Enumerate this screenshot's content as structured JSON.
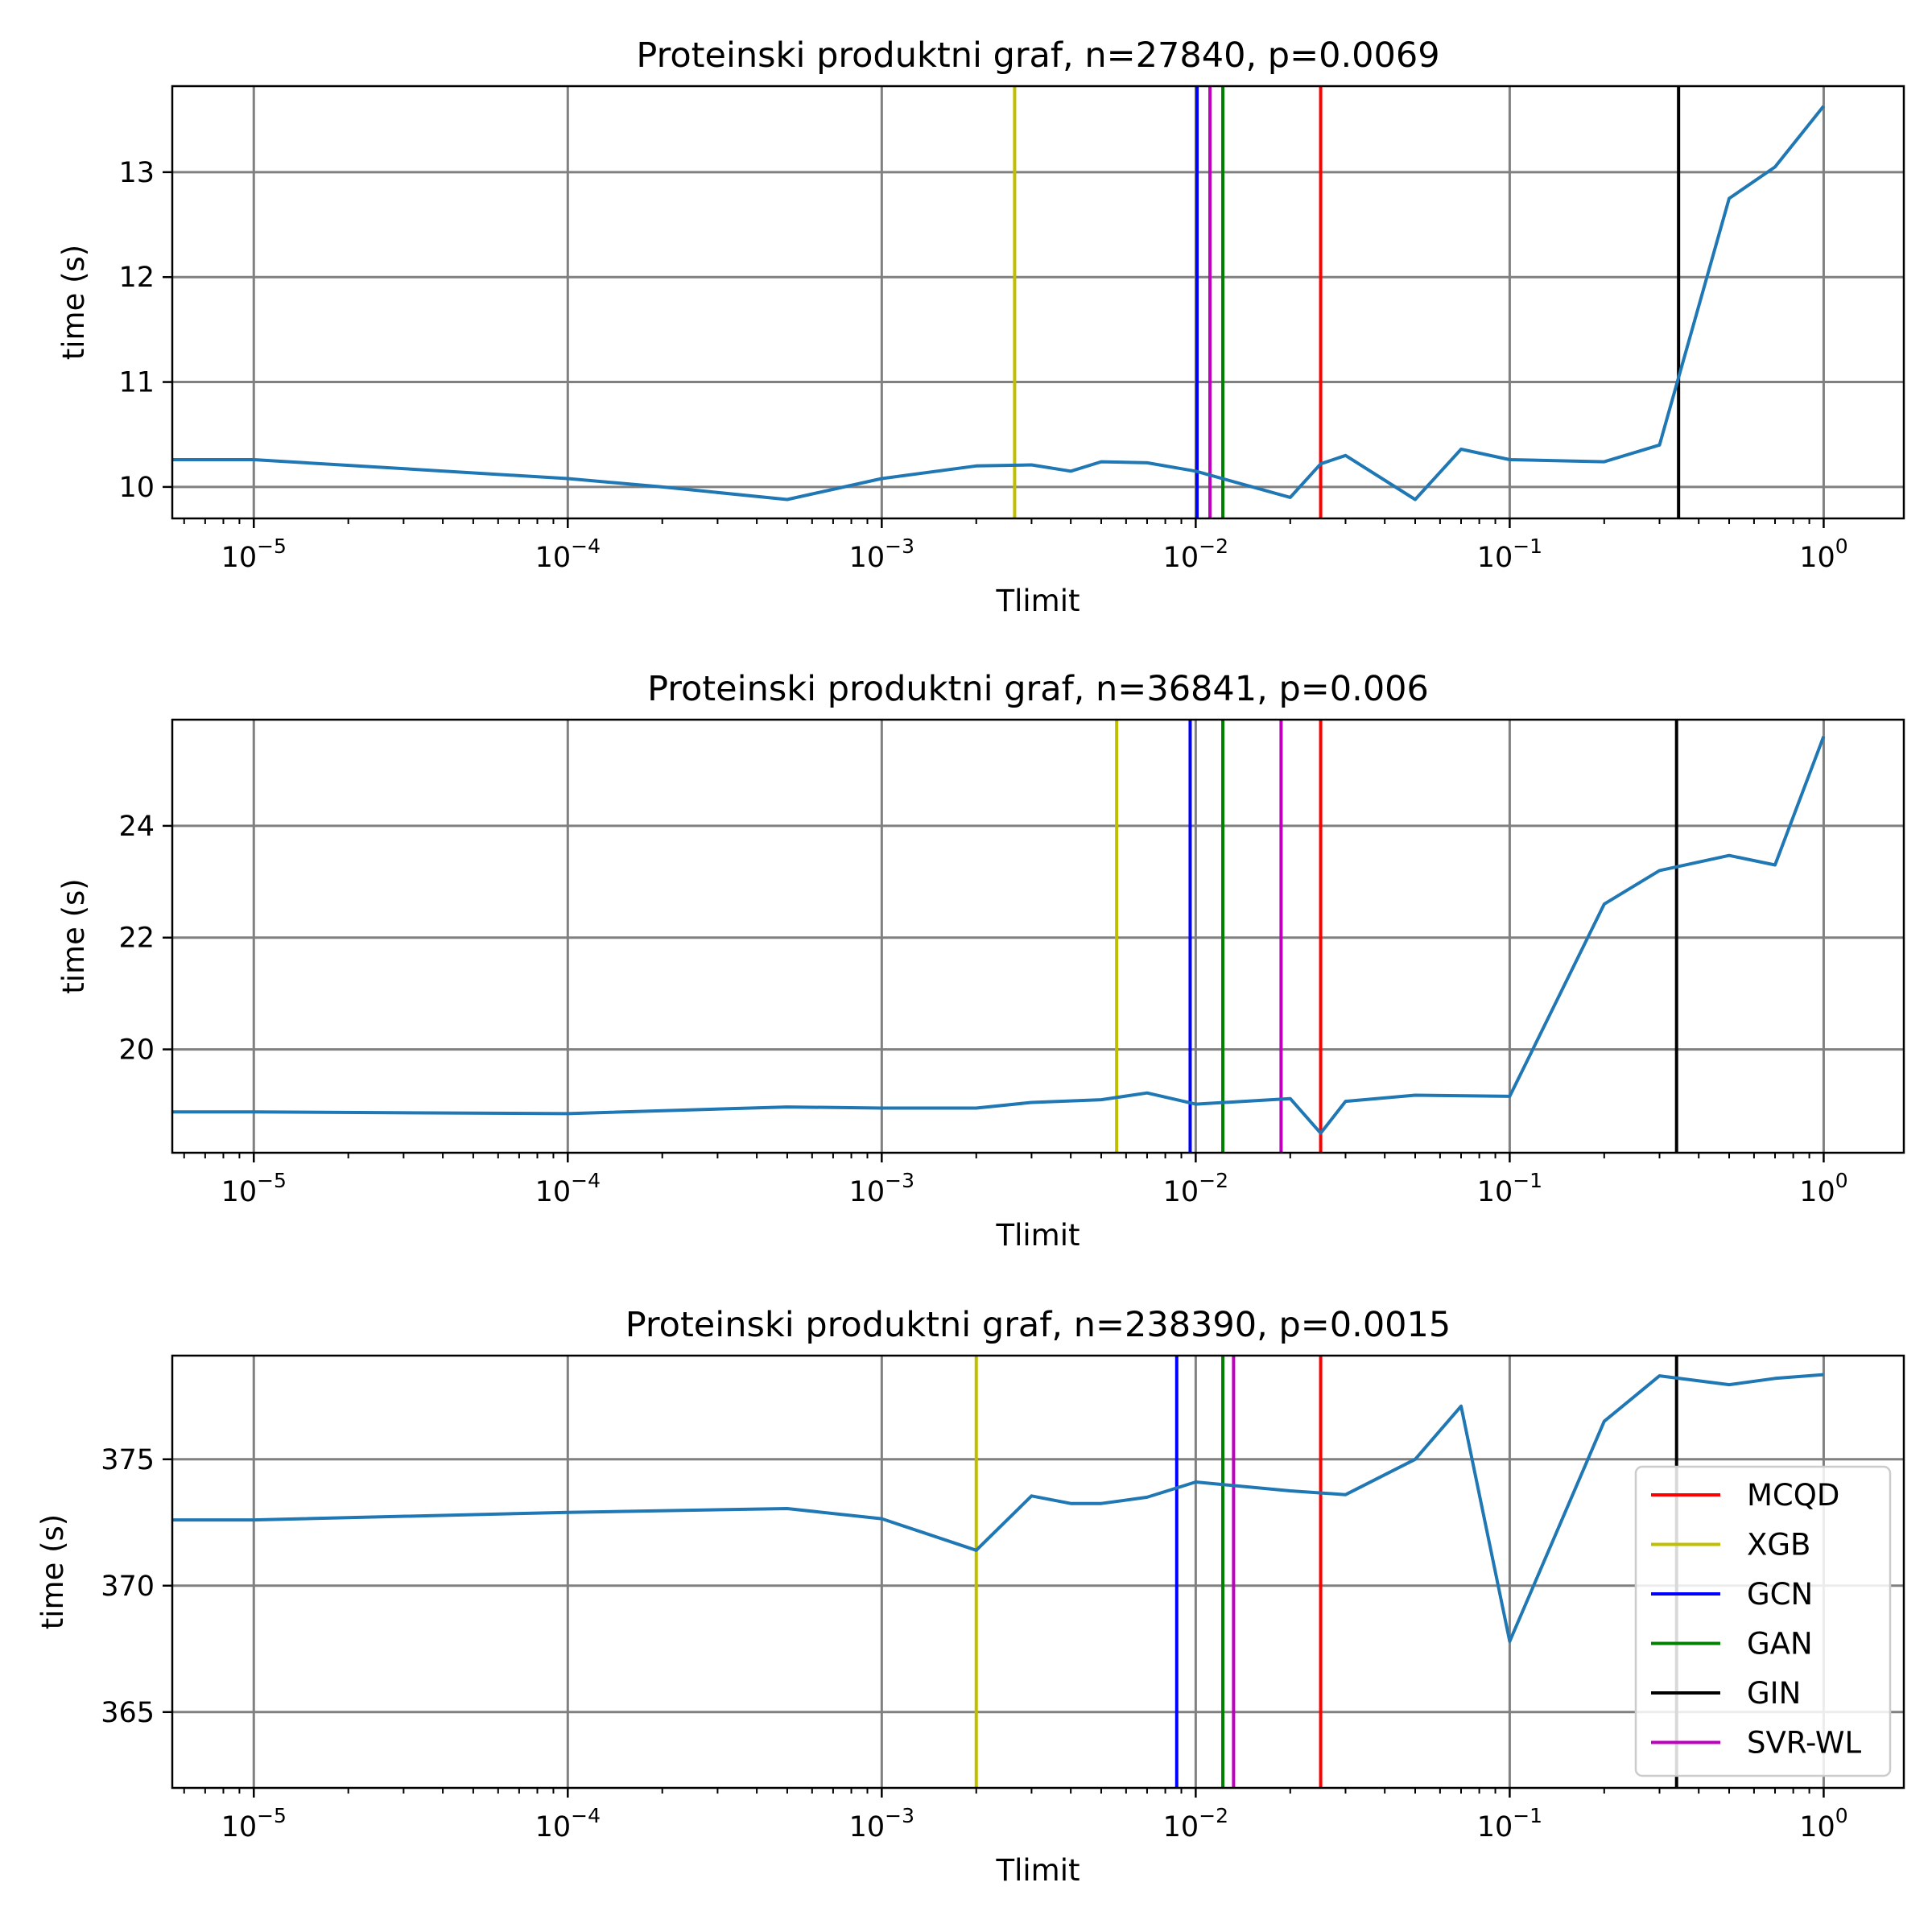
{
  "colors": {
    "series": "#1f77b4",
    "grid": "#808080",
    "MCQD": "#ff0000",
    "XGB": "#bfbf00",
    "GCN": "#0000ff",
    "GAN": "#008000",
    "GIN": "#000000",
    "SVR-WL": "#bf00bf"
  },
  "legend": {
    "placement": "lower-right of third panel",
    "entries": [
      "MCQD",
      "XGB",
      "GCN",
      "GAN",
      "GIN",
      "SVR-WL"
    ]
  },
  "x_tick_labels": [
    {
      "base": "10",
      "exp": "−5",
      "value": 1e-05
    },
    {
      "base": "10",
      "exp": "−4",
      "value": 0.0001
    },
    {
      "base": "10",
      "exp": "−3",
      "value": 0.001
    },
    {
      "base": "10",
      "exp": "−2",
      "value": 0.01
    },
    {
      "base": "10",
      "exp": "−1",
      "value": 0.1
    },
    {
      "base": "10",
      "exp": "0",
      "value": 1
    }
  ],
  "chart_data": [
    {
      "type": "line",
      "title": "Proteinski produktni graf, n=27840, p=0.0069",
      "xlabel": "Tlimit",
      "ylabel": "time (s)",
      "xscale": "log",
      "xlim": [
        5.5e-06,
        1.8
      ],
      "ylim": [
        9.7,
        13.82
      ],
      "yticks": [
        10,
        11,
        12,
        13
      ],
      "grid": true,
      "x": [
        5e-06,
        1e-05,
        0.0001,
        0.0002,
        0.0005,
        0.001,
        0.002,
        0.003,
        0.004,
        0.005,
        0.007,
        0.01,
        0.02,
        0.025,
        0.03,
        0.05,
        0.07,
        0.1,
        0.2,
        0.3,
        0.5,
        0.7,
        1
      ],
      "y": [
        10.26,
        10.26,
        10.08,
        10.0,
        9.88,
        10.08,
        10.2,
        10.21,
        10.15,
        10.24,
        10.23,
        10.15,
        9.9,
        10.22,
        10.3,
        9.88,
        10.36,
        10.26,
        10.24,
        10.4,
        12.75,
        13.05,
        13.63
      ],
      "vlines": [
        {
          "method": "XGB",
          "x": 0.00265
        },
        {
          "method": "GCN",
          "x": 0.0101
        },
        {
          "method": "SVR-WL",
          "x": 0.0111
        },
        {
          "method": "GAN",
          "x": 0.0122
        },
        {
          "method": "MCQD",
          "x": 0.025
        },
        {
          "method": "GIN",
          "x": 0.345
        }
      ]
    },
    {
      "type": "line",
      "title": "Proteinski produktni graf, n=36841, p=0.006",
      "xlabel": "Tlimit",
      "ylabel": "time (s)",
      "xscale": "log",
      "xlim": [
        5.5e-06,
        1.8
      ],
      "ylim": [
        18.15,
        25.9
      ],
      "yticks": [
        20,
        22,
        24
      ],
      "grid": true,
      "x": [
        5e-06,
        1e-05,
        0.0001,
        0.0005,
        0.001,
        0.002,
        0.003,
        0.005,
        0.007,
        0.01,
        0.02,
        0.025,
        0.03,
        0.05,
        0.1,
        0.2,
        0.3,
        0.5,
        0.7,
        1
      ],
      "y": [
        18.88,
        18.88,
        18.85,
        18.97,
        18.95,
        18.95,
        19.05,
        19.1,
        19.22,
        19.02,
        19.12,
        18.5,
        19.07,
        19.18,
        19.16,
        22.6,
        23.2,
        23.47,
        23.3,
        25.6
      ],
      "vlines": [
        {
          "method": "XGB",
          "x": 0.0056
        },
        {
          "method": "GCN",
          "x": 0.0096
        },
        {
          "method": "GAN",
          "x": 0.0122
        },
        {
          "method": "SVR-WL",
          "x": 0.0187
        },
        {
          "method": "MCQD",
          "x": 0.025
        },
        {
          "method": "GIN",
          "x": 0.34
        }
      ]
    },
    {
      "type": "line",
      "title": "Proteinski produktni graf, n=238390, p=0.0015",
      "xlabel": "Tlimit",
      "ylabel": "time (s)",
      "xscale": "log",
      "xlim": [
        5.5e-06,
        1.8
      ],
      "ylim": [
        362.0,
        379.1
      ],
      "yticks": [
        365,
        370,
        375
      ],
      "grid": true,
      "x": [
        5e-06,
        1e-05,
        0.0001,
        0.0005,
        0.001,
        0.002,
        0.003,
        0.004,
        0.005,
        0.007,
        0.01,
        0.02,
        0.03,
        0.05,
        0.07,
        0.1,
        0.2,
        0.3,
        0.5,
        0.7,
        1
      ],
      "y": [
        372.6,
        372.6,
        372.9,
        373.05,
        372.65,
        371.4,
        373.55,
        373.25,
        373.25,
        373.5,
        374.1,
        373.75,
        373.6,
        375.0,
        377.1,
        367.8,
        376.5,
        378.3,
        377.95,
        378.2,
        378.35
      ],
      "vlines": [
        {
          "method": "XGB",
          "x": 0.002
        },
        {
          "method": "GCN",
          "x": 0.0087
        },
        {
          "method": "GAN",
          "x": 0.0122
        },
        {
          "method": "SVR-WL",
          "x": 0.0132
        },
        {
          "method": "MCQD",
          "x": 0.025
        },
        {
          "method": "GIN",
          "x": 0.34
        }
      ]
    }
  ]
}
